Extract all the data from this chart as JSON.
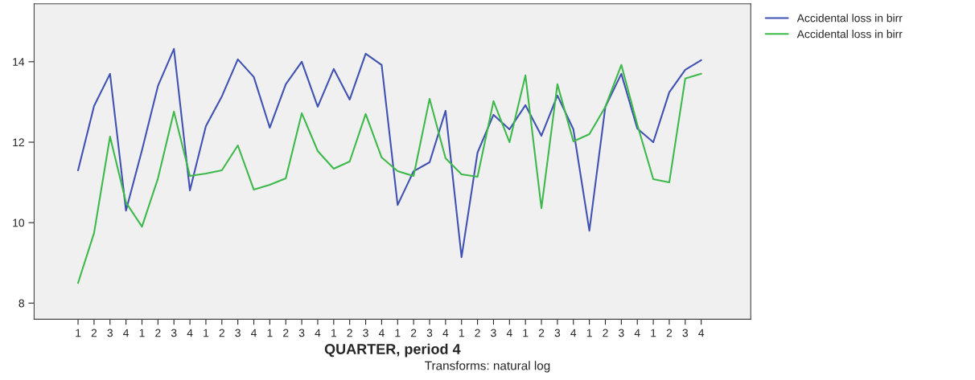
{
  "chart_data": {
    "type": "line",
    "xlabel": "QUARTER, period 4",
    "annotations": [
      "Transforms: natural log"
    ],
    "categories": [
      "1",
      "2",
      "3",
      "4",
      "1",
      "2",
      "3",
      "4",
      "1",
      "2",
      "3",
      "4",
      "1",
      "2",
      "3",
      "4",
      "1",
      "2",
      "3",
      "4",
      "1",
      "2",
      "3",
      "4",
      "1",
      "2",
      "3",
      "4",
      "1",
      "2",
      "3",
      "4",
      "1",
      "2",
      "3",
      "4",
      "1",
      "2",
      "3",
      "4"
    ],
    "series": [
      {
        "name": "Accidental loss in birr",
        "color": "#3f51b1",
        "values": [
          11.3,
          12.9,
          13.7,
          10.3,
          11.8,
          13.4,
          14.32,
          10.8,
          12.4,
          13.14,
          14.06,
          13.62,
          12.36,
          13.44,
          14.0,
          12.88,
          13.82,
          13.06,
          14.2,
          13.92,
          10.44,
          11.28,
          11.5,
          12.78,
          9.14,
          11.74,
          12.68,
          12.32,
          12.92,
          12.16,
          13.16,
          12.32,
          9.8,
          12.88,
          13.7,
          12.34,
          12.0,
          13.24,
          13.8,
          14.04
        ]
      },
      {
        "name": "Accidental loss in birr",
        "color": "#3cb94a",
        "values": [
          8.5,
          9.74,
          12.14,
          10.5,
          9.9,
          11.1,
          12.76,
          11.16,
          11.22,
          11.3,
          11.92,
          10.82,
          10.94,
          11.1,
          12.72,
          11.78,
          11.34,
          11.52,
          12.7,
          11.62,
          11.28,
          11.16,
          13.08,
          11.6,
          11.2,
          11.14,
          13.02,
          12.0,
          13.66,
          10.36,
          13.44,
          12.02,
          12.2,
          12.88,
          13.92,
          12.44,
          11.08,
          11.0,
          13.58,
          13.7
        ]
      }
    ],
    "ylim": [
      7.6,
      15.44
    ],
    "yticks": [
      8,
      10,
      12,
      14
    ],
    "grid": false,
    "legend": "top right",
    "line_style": "solid",
    "marker": "none"
  }
}
